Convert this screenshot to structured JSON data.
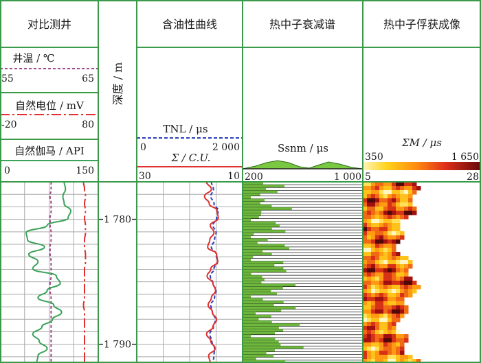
{
  "chart_data": {
    "type": "line",
    "tracks": {
      "comparison": {
        "title": "对比测井",
        "curves": [
          {
            "name": "井温 / ℃",
            "min": "55",
            "max": "65",
            "range": [
              55,
              65
            ],
            "color": "#a04a8a",
            "values": [
              60.2,
              60.2,
              60.1,
              60.2,
              60.2,
              60.1,
              60.1,
              60.2,
              60.2,
              60.1,
              60.1,
              60.2,
              60.2,
              60.2,
              60.1,
              60.1,
              60.2,
              60.2,
              60.2,
              60.2,
              60.2,
              60.2,
              60.2,
              60.2,
              60.2,
              60.2
            ]
          },
          {
            "name": "自然电位 / mV",
            "min": "-20",
            "max": "80",
            "range": [
              -20,
              80
            ],
            "color": "#e03030",
            "values": [
              65,
              66,
              67,
              66,
              67,
              66,
              67,
              67,
              66,
              66,
              67,
              67,
              66,
              66,
              66,
              66,
              66,
              65,
              66,
              66,
              66,
              66,
              66,
              66,
              66,
              66
            ]
          },
          {
            "name": "自然伽马 / API",
            "min": "0",
            "max": "150",
            "range": [
              0,
              150
            ],
            "color": "#3aa35a",
            "values": [
              98,
              100,
              96,
              98,
              108,
              104,
              72,
              40,
              42,
              68,
              44,
              58,
              50,
              86,
              92,
              72,
              58,
              82,
              94,
              80,
              64,
              50,
              60,
              72,
              58,
              56
            ]
          }
        ]
      },
      "depth": {
        "label": "深度 / m",
        "ticks": [
          {
            "depth": 1780,
            "label": "1 780"
          },
          {
            "depth": 1790,
            "label": "1 790"
          }
        ]
      },
      "oil": {
        "title": "含油性曲线",
        "curves": [
          {
            "name": "TNL / μs",
            "min": "0",
            "max": "2 000",
            "range": [
              0,
              2000
            ],
            "color": "#2a3db8",
            "dashed": true,
            "values": [
              1410,
              1450,
              1400,
              1460,
              1540,
              1510,
              1440,
              1500,
              1470,
              1410,
              1500,
              1530,
              1460,
              1390,
              1440,
              1500,
              1470,
              1400,
              1430,
              1490,
              1450,
              1380,
              1420,
              1470,
              1460,
              1440
            ]
          },
          {
            "name": "Σ / C.U.",
            "min": "30",
            "max": "10",
            "range": [
              30,
              10
            ],
            "color": "#e03030",
            "values": [
              16.8,
              15.9,
              17.2,
              16.3,
              14.8,
              14.6,
              16.1,
              15.4,
              16.2,
              16.6,
              14.9,
              14.7,
              16.0,
              16.7,
              15.6,
              15.1,
              15.9,
              16.5,
              15.7,
              14.9,
              15.6,
              16.8,
              16.0,
              15.2,
              16.4,
              16.1
            ]
          }
        ]
      },
      "spectrum": {
        "title": "热中子衰减谱",
        "curve_label": "Ssnm / μs",
        "min": "200",
        "max": "1 000",
        "range": [
          200,
          1000
        ]
      },
      "imaging": {
        "title": "热中子俘获成像",
        "curve_label": "ΣM / μs",
        "min": "350",
        "max": "1 650",
        "scale_min": "5",
        "scale_max": "28"
      }
    },
    "depth_range": [
      1777,
      1791.5
    ]
  }
}
